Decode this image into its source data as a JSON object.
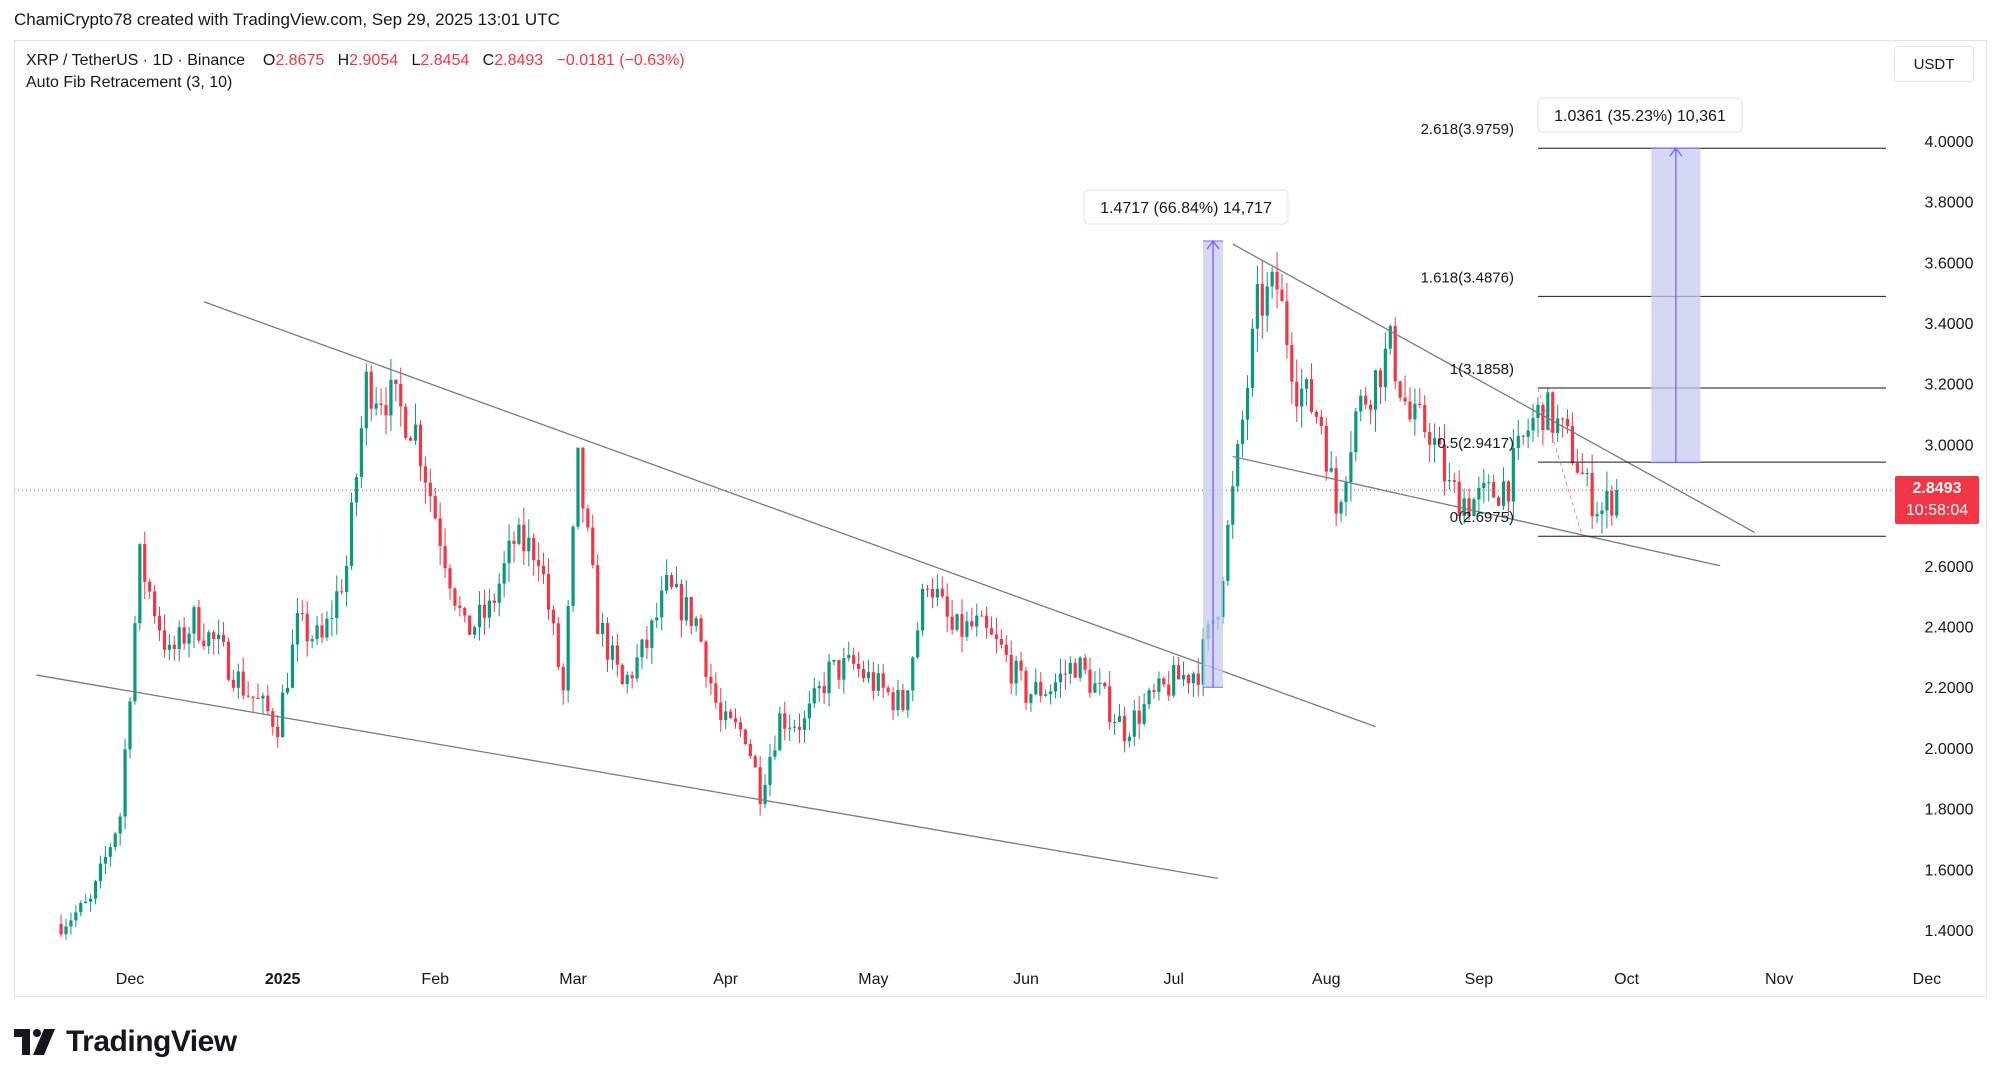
{
  "header": {
    "creator_line": "ChamiCrypto78 created with TradingView.com, Sep 29, 2025 13:01 UTC"
  },
  "legend": {
    "symbol": "XRP / TetherUS · 1D · Binance",
    "o_label": "O",
    "o_value": "2.8675",
    "h_label": "H",
    "h_value": "2.9054",
    "l_label": "L",
    "l_value": "2.8454",
    "c_label": "C",
    "c_value": "2.8493",
    "change": "−0.0181 (−0.63%)",
    "indicator": "Auto Fib Retracement (3, 10)"
  },
  "currency_button": "USDT",
  "price_tag": {
    "price": "2.8493",
    "countdown": "10:58:04"
  },
  "brand": {
    "name": "TradingView"
  },
  "colors": {
    "up": "#089981",
    "down": "#f23645",
    "trendline": "#787b86",
    "measure": "#7b61ff",
    "measure_fill": "#c5cbf2"
  },
  "chart_data": {
    "type": "candlestick",
    "symbol": "XRP / TetherUS",
    "ylim": [
      1.32,
      4.06
    ],
    "yticks": [
      "1.4000",
      "1.6000",
      "1.8000",
      "2.0000",
      "2.2000",
      "2.4000",
      "2.6000",
      "2.8000",
      "3.0000",
      "3.2000",
      "3.4000",
      "3.6000",
      "3.8000",
      "4.0000"
    ],
    "xticks": [
      "Dec",
      "2025",
      "Feb",
      "Mar",
      "Apr",
      "May",
      "Jun",
      "Jul",
      "Aug",
      "Sep",
      "Oct",
      "Nov",
      "Dec"
    ],
    "x_range": [
      "2024-11-12",
      "2025-12-10"
    ],
    "last_price": 2.8493,
    "closes": [
      {
        "date": "2024-11-17",
        "close": 1.42
      },
      {
        "date": "2024-11-23",
        "close": 1.49
      },
      {
        "date": "2024-11-29",
        "close": 1.78
      },
      {
        "date": "2024-12-03",
        "close": 2.62
      },
      {
        "date": "2024-12-09",
        "close": 2.3
      },
      {
        "date": "2024-12-14",
        "close": 2.42
      },
      {
        "date": "2024-12-19",
        "close": 2.33
      },
      {
        "date": "2024-12-24",
        "close": 2.2
      },
      {
        "date": "2024-12-31",
        "close": 2.08
      },
      {
        "date": "2025-01-04",
        "close": 2.4
      },
      {
        "date": "2025-01-09",
        "close": 2.35
      },
      {
        "date": "2025-01-14",
        "close": 2.6
      },
      {
        "date": "2025-01-18",
        "close": 3.2
      },
      {
        "date": "2025-01-23",
        "close": 3.15
      },
      {
        "date": "2025-01-28",
        "close": 3.05
      },
      {
        "date": "2025-02-02",
        "close": 2.7
      },
      {
        "date": "2025-02-07",
        "close": 2.38
      },
      {
        "date": "2025-02-12",
        "close": 2.45
      },
      {
        "date": "2025-02-17",
        "close": 2.68
      },
      {
        "date": "2025-02-22",
        "close": 2.65
      },
      {
        "date": "2025-02-27",
        "close": 2.18
      },
      {
        "date": "2025-03-02",
        "close": 2.93
      },
      {
        "date": "2025-03-06",
        "close": 2.42
      },
      {
        "date": "2025-03-11",
        "close": 2.2
      },
      {
        "date": "2025-03-16",
        "close": 2.34
      },
      {
        "date": "2025-03-20",
        "close": 2.52
      },
      {
        "date": "2025-03-26",
        "close": 2.42
      },
      {
        "date": "2025-03-31",
        "close": 2.08
      },
      {
        "date": "2025-04-05",
        "close": 2.05
      },
      {
        "date": "2025-04-08",
        "close": 1.86
      },
      {
        "date": "2025-04-12",
        "close": 2.1
      },
      {
        "date": "2025-04-17",
        "close": 2.08
      },
      {
        "date": "2025-04-22",
        "close": 2.25
      },
      {
        "date": "2025-04-27",
        "close": 2.27
      },
      {
        "date": "2025-05-02",
        "close": 2.2
      },
      {
        "date": "2025-05-07",
        "close": 2.14
      },
      {
        "date": "2025-05-12",
        "close": 2.57
      },
      {
        "date": "2025-05-17",
        "close": 2.38
      },
      {
        "date": "2025-05-22",
        "close": 2.4
      },
      {
        "date": "2025-05-27",
        "close": 2.32
      },
      {
        "date": "2025-06-01",
        "close": 2.18
      },
      {
        "date": "2025-06-06",
        "close": 2.2
      },
      {
        "date": "2025-06-11",
        "close": 2.28
      },
      {
        "date": "2025-06-16",
        "close": 2.18
      },
      {
        "date": "2025-06-21",
        "close": 2.06
      },
      {
        "date": "2025-06-26",
        "close": 2.15
      },
      {
        "date": "2025-07-01",
        "close": 2.22
      },
      {
        "date": "2025-07-06",
        "close": 2.26
      },
      {
        "date": "2025-07-10",
        "close": 2.48
      },
      {
        "date": "2025-07-14",
        "close": 2.95
      },
      {
        "date": "2025-07-18",
        "close": 3.45
      },
      {
        "date": "2025-07-22",
        "close": 3.52
      },
      {
        "date": "2025-07-26",
        "close": 3.2
      },
      {
        "date": "2025-07-31",
        "close": 3.08
      },
      {
        "date": "2025-08-03",
        "close": 2.78
      },
      {
        "date": "2025-08-07",
        "close": 3.1
      },
      {
        "date": "2025-08-11",
        "close": 3.22
      },
      {
        "date": "2025-08-14",
        "close": 3.32
      },
      {
        "date": "2025-08-18",
        "close": 3.08
      },
      {
        "date": "2025-08-22",
        "close": 3.05
      },
      {
        "date": "2025-08-26",
        "close": 2.85
      },
      {
        "date": "2025-08-30",
        "close": 2.81
      },
      {
        "date": "2025-09-03",
        "close": 2.83
      },
      {
        "date": "2025-09-07",
        "close": 2.88
      },
      {
        "date": "2025-09-11",
        "close": 3.05
      },
      {
        "date": "2025-09-14",
        "close": 3.12
      },
      {
        "date": "2025-09-17",
        "close": 3.06
      },
      {
        "date": "2025-09-20",
        "close": 2.98
      },
      {
        "date": "2025-09-23",
        "close": 2.85
      },
      {
        "date": "2025-09-26",
        "close": 2.78
      },
      {
        "date": "2025-09-29",
        "close": 2.8493
      }
    ],
    "fib_levels": [
      {
        "label": "2.618(3.9759)",
        "price": 3.9759
      },
      {
        "label": "1.618(3.4876)",
        "price": 3.4876
      },
      {
        "label": "1(3.1858)",
        "price": 3.1858
      },
      {
        "label": "0.5(2.9417)",
        "price": 2.9417
      },
      {
        "label": "0(2.6975)",
        "price": 2.6975
      }
    ],
    "measurements": [
      {
        "label": "1.4717 (66.84%) 14,717",
        "from_date": "2025-07-09",
        "to_date": "2025-07-09",
        "from_price": 2.2,
        "to_price": 3.67
      },
      {
        "label": "1.0361 (35.23%) 10,361",
        "from_date": "2025-10-06",
        "to_date": "2025-10-16",
        "from_price": 2.94,
        "to_price": 3.9759
      }
    ],
    "trendlines": [
      {
        "from": [
          "2024-11-12",
          2.24
        ],
        "to": [
          "2025-07-10",
          1.57
        ]
      },
      {
        "from": [
          "2024-12-16",
          3.47
        ],
        "to": [
          "2025-08-11",
          2.07
        ]
      },
      {
        "from": [
          "2025-07-13",
          3.66
        ],
        "to": [
          "2025-10-27",
          2.71
        ]
      },
      {
        "from": [
          "2025-07-13",
          2.96
        ],
        "to": [
          "2025-10-20",
          2.6
        ]
      }
    ]
  }
}
